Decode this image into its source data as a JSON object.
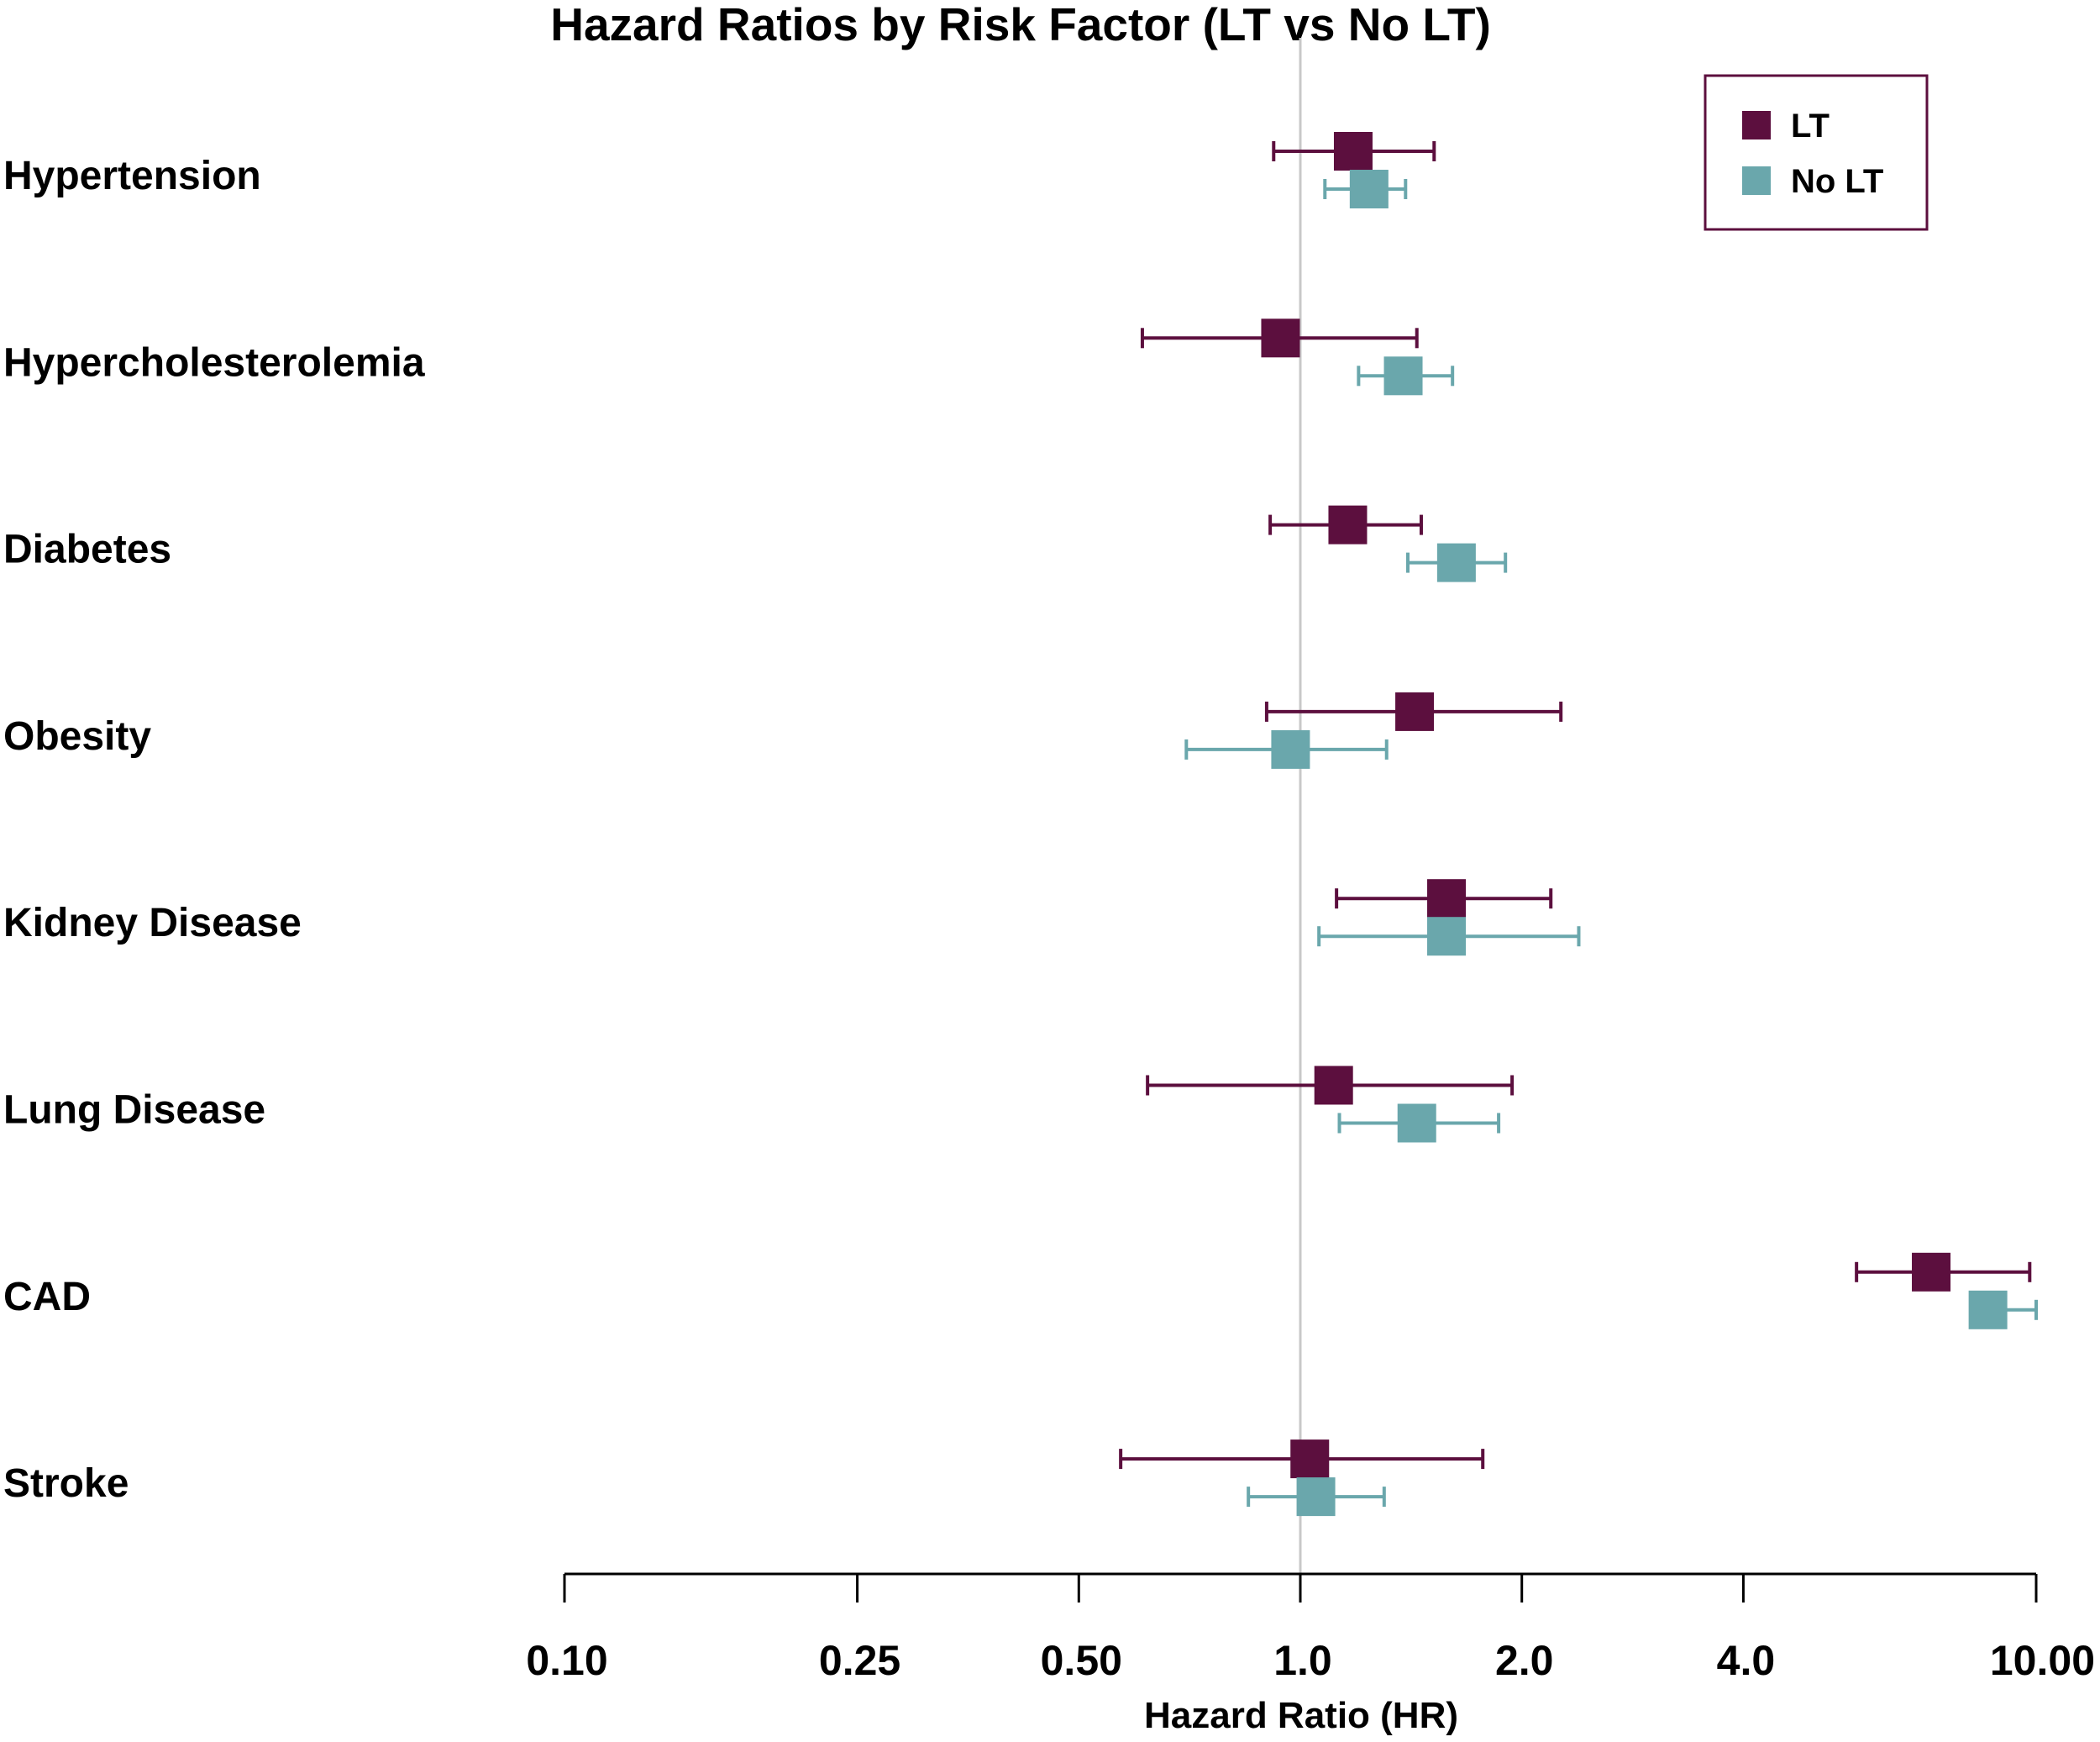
{
  "chart_data": {
    "type": "forest",
    "title": "Hazard Ratios by Risk Factor (LT vs No LT)",
    "xlabel": "Hazard Ratio (HR)",
    "ylabel": "",
    "x_scale": "log",
    "xlim": [
      0.1,
      10.0
    ],
    "x_ticks": [
      0.1,
      0.25,
      0.5,
      1.0,
      2.0,
      4.0,
      10.0
    ],
    "x_tick_labels": [
      "0.10",
      "0.25",
      "0.50",
      "1.0",
      "2.0",
      "4.0",
      "10.00"
    ],
    "reference_line": 1.0,
    "grid": false,
    "legend_position": "top-right",
    "categories": [
      "Hypertension",
      "Hypercholesterolemia",
      "Diabetes",
      "Obesity",
      "Kidney Disease",
      "Lung Disease",
      "CAD",
      "Stroke"
    ],
    "series": [
      {
        "name": "LT",
        "color": "#5c0f3e",
        "points": [
          {
            "hr": 1.18,
            "lower": 0.92,
            "upper": 1.52
          },
          {
            "hr": 0.94,
            "lower": 0.61,
            "upper": 1.44
          },
          {
            "hr": 1.16,
            "lower": 0.91,
            "upper": 1.46
          },
          {
            "hr": 1.43,
            "lower": 0.9,
            "upper": 2.26
          },
          {
            "hr": 1.58,
            "lower": 1.12,
            "upper": 2.19
          },
          {
            "hr": 1.11,
            "lower": 0.62,
            "upper": 1.94
          },
          {
            "hr": 7.2,
            "lower": 5.7,
            "upper": 9.8
          },
          {
            "hr": 1.03,
            "lower": 0.57,
            "upper": 1.77
          }
        ]
      },
      {
        "name": "No LT",
        "color": "#6aa7ac",
        "points": [
          {
            "hr": 1.24,
            "lower": 1.08,
            "upper": 1.39
          },
          {
            "hr": 1.38,
            "lower": 1.2,
            "upper": 1.61
          },
          {
            "hr": 1.63,
            "lower": 1.4,
            "upper": 1.9
          },
          {
            "hr": 0.97,
            "lower": 0.7,
            "upper": 1.31
          },
          {
            "hr": 1.58,
            "lower": 1.06,
            "upper": 2.39
          },
          {
            "hr": 1.44,
            "lower": 1.13,
            "upper": 1.86
          },
          {
            "hr": 8.6,
            "lower": 8.2,
            "upper": 10.0
          },
          {
            "hr": 1.05,
            "lower": 0.85,
            "upper": 1.3
          }
        ]
      }
    ]
  }
}
